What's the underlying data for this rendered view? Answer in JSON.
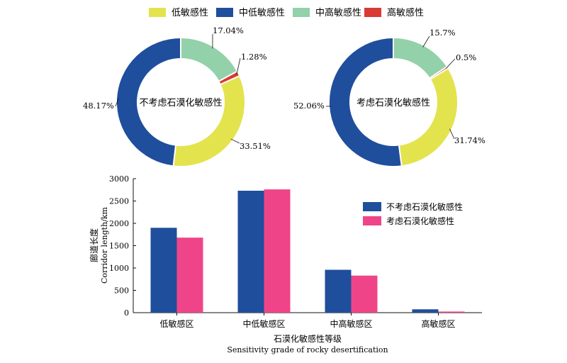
{
  "legend_top": [
    {
      "label": "低敏感性",
      "color": "#E3E34E"
    },
    {
      "label": "中低敏感性",
      "color": "#1F4E9C"
    },
    {
      "label": "中高敏感性",
      "color": "#92D1A9"
    },
    {
      "label": "高敏感性",
      "color": "#D93A33"
    }
  ],
  "chart_data": [
    {
      "type": "pie",
      "style": "donut",
      "center_label": "不考虑石漠化敏感性",
      "labels": [
        "低敏感性",
        "中低敏感性",
        "中高敏感性",
        "高敏感性"
      ],
      "values": [
        33.51,
        48.17,
        17.04,
        1.28
      ],
      "value_labels": [
        "33.51%",
        "48.17%",
        "17.04%",
        "1.28%"
      ],
      "colors": [
        "#E3E34E",
        "#1F4E9C",
        "#92D1A9",
        "#D93A33"
      ]
    },
    {
      "type": "pie",
      "style": "donut",
      "center_label": "考虑石漠化敏感性",
      "labels": [
        "低敏感性",
        "中低敏感性",
        "中高敏感性",
        "高敏感性"
      ],
      "values": [
        31.74,
        52.06,
        15.7,
        0.5
      ],
      "value_labels": [
        "31.74%",
        "52.06%",
        "15.7%",
        "0.5%"
      ],
      "colors": [
        "#E3E34E",
        "#1F4E9C",
        "#92D1A9",
        "#D93A33"
      ]
    },
    {
      "type": "bar",
      "categories": [
        "低敏感区",
        "中低敏感区",
        "中高敏感区",
        "高敏感区"
      ],
      "series": [
        {
          "name": "不考虑石漠化敏感性",
          "color": "#1F4E9C",
          "values": [
            1900,
            2730,
            960,
            75
          ]
        },
        {
          "name": "考虑石漠化敏感性",
          "color": "#F04488",
          "values": [
            1680,
            2760,
            830,
            25
          ]
        }
      ],
      "ylabel_cn": "廊道长度",
      "ylabel_en": "Corridor length/km",
      "xlabel_cn": "石漠化敏感性等级",
      "xlabel_en": "Sensitivity grade of rocky desertification",
      "ylim": [
        0,
        3000
      ],
      "yticks": [
        0,
        500,
        1000,
        1500,
        2000,
        2500,
        3000
      ],
      "legend_position": "top-right"
    }
  ]
}
